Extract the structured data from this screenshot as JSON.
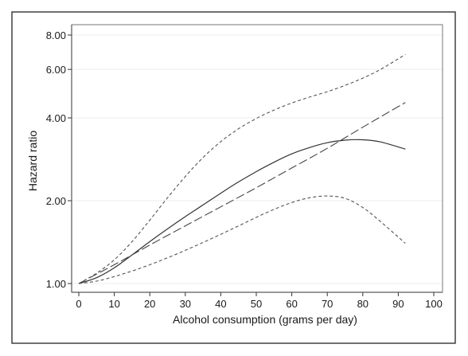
{
  "chart_data": {
    "type": "line",
    "title": "",
    "xlabel": "Alcohol consumption (grams per day)",
    "ylabel": "Hazard ratio",
    "xlim": [
      0,
      100
    ],
    "ylim": [
      1.0,
      8.0
    ],
    "yscale": "log",
    "grid": true,
    "x_ticks": [
      0,
      10,
      20,
      30,
      40,
      50,
      60,
      70,
      80,
      90,
      100
    ],
    "x_tick_labels": [
      "0",
      "10",
      "20",
      "30",
      "40",
      "50",
      "60",
      "70",
      "80",
      "90",
      "100"
    ],
    "y_ticks": [
      1.0,
      2.0,
      4.0,
      6.0,
      8.0
    ],
    "y_tick_labels": [
      "1.00",
      "2.00",
      "4.00",
      "6.00",
      "8.00"
    ],
    "series": [
      {
        "style": "solid",
        "color": "#333333",
        "x": [
          0,
          5,
          10,
          15,
          20,
          25,
          30,
          35,
          40,
          45,
          50,
          55,
          60,
          65,
          70,
          75,
          80,
          85,
          92
        ],
        "y": [
          1.0,
          1.05,
          1.14,
          1.27,
          1.42,
          1.58,
          1.75,
          1.93,
          2.13,
          2.34,
          2.55,
          2.76,
          2.96,
          3.12,
          3.25,
          3.32,
          3.33,
          3.27,
          3.08
        ]
      },
      {
        "style": "long-dash",
        "color": "#444444",
        "x": [
          0,
          10,
          20,
          30,
          40,
          50,
          60,
          70,
          80,
          92
        ],
        "y": [
          1.0,
          1.17,
          1.38,
          1.62,
          1.9,
          2.23,
          2.63,
          3.1,
          3.7,
          4.55
        ]
      },
      {
        "style": "short-dash",
        "color": "#555555",
        "x": [
          0,
          5,
          10,
          15,
          20,
          25,
          30,
          35,
          40,
          45,
          50,
          55,
          60,
          65,
          70,
          75,
          80,
          85,
          92
        ],
        "y": [
          1.0,
          1.09,
          1.22,
          1.42,
          1.7,
          2.05,
          2.45,
          2.87,
          3.28,
          3.65,
          3.98,
          4.27,
          4.53,
          4.76,
          4.98,
          5.25,
          5.58,
          6.0,
          6.8
        ]
      },
      {
        "style": "short-dash",
        "color": "#555555",
        "x": [
          0,
          5,
          10,
          15,
          20,
          25,
          30,
          35,
          40,
          45,
          50,
          55,
          60,
          65,
          70,
          75,
          80,
          85,
          92
        ],
        "y": [
          1.0,
          1.02,
          1.06,
          1.11,
          1.17,
          1.24,
          1.32,
          1.41,
          1.51,
          1.62,
          1.74,
          1.86,
          1.97,
          2.05,
          2.08,
          2.04,
          1.89,
          1.68,
          1.4
        ]
      }
    ]
  }
}
